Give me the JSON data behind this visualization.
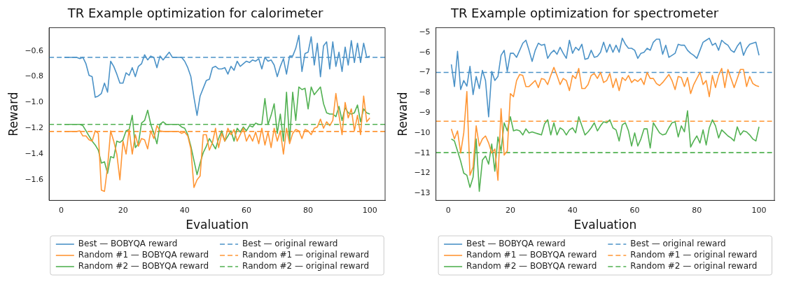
{
  "chart_data": [
    {
      "type": "line",
      "title": "TR Example optimization for calorimeter",
      "xlabel": "Evaluation",
      "ylabel": "Reward",
      "marker": "none",
      "line_style": "solid",
      "grid": false,
      "legend": "bottom",
      "x": [
        1,
        2,
        3,
        4,
        5,
        6,
        7,
        8,
        9,
        10,
        11,
        12,
        13,
        14,
        15,
        16,
        17,
        18,
        19,
        20,
        21,
        22,
        23,
        24,
        25,
        26,
        27,
        28,
        29,
        30,
        31,
        32,
        33,
        34,
        35,
        36,
        37,
        38,
        39,
        40,
        41,
        42,
        43,
        44,
        45,
        46,
        47,
        48,
        49,
        50,
        51,
        52,
        53,
        54,
        55,
        56,
        57,
        58,
        59,
        60,
        61,
        62,
        63,
        64,
        65,
        66,
        67,
        68,
        69,
        70,
        71,
        72,
        73,
        74,
        75,
        76,
        77,
        78,
        79,
        80,
        81,
        82,
        83,
        84,
        85,
        86,
        87,
        88,
        89,
        90,
        91,
        92,
        93,
        94,
        95,
        96,
        97,
        98,
        99,
        100
      ],
      "xlim": [
        -3.95,
        104.95
      ],
      "xticks": [
        0,
        20,
        40,
        60,
        80,
        100
      ],
      "ylim": [
        -1.76,
        -0.42
      ],
      "yticks": [
        {
          "value": -1.6,
          "label": "−1.6"
        },
        {
          "value": -1.4,
          "label": "−1.4"
        },
        {
          "value": -1.2,
          "label": "−1.2"
        },
        {
          "value": -1.0,
          "label": "−1.0"
        },
        {
          "value": -0.8,
          "label": "−0.8"
        },
        {
          "value": -0.6,
          "label": "−0.6"
        }
      ],
      "series": [
        {
          "name": "Best — BOBYQA reward",
          "color": "#4b92c7",
          "values": [
            -0.65,
            -0.65,
            -0.65,
            -0.65,
            -0.65,
            -0.66,
            -0.65,
            -0.7,
            -0.79,
            -0.8,
            -0.96,
            -0.95,
            -0.93,
            -0.85,
            -0.92,
            -0.68,
            -0.72,
            -0.78,
            -0.85,
            -0.85,
            -0.77,
            -0.79,
            -0.73,
            -0.8,
            -0.72,
            -0.7,
            -0.63,
            -0.67,
            -0.64,
            -0.65,
            -0.73,
            -0.64,
            -0.67,
            -0.64,
            -0.61,
            -0.65,
            -0.65,
            -0.65,
            -0.65,
            -0.68,
            -0.73,
            -0.8,
            -0.96,
            -1.1,
            -0.95,
            -0.89,
            -0.83,
            -0.82,
            -0.73,
            -0.72,
            -0.74,
            -0.74,
            -0.73,
            -0.78,
            -0.72,
            -0.75,
            -0.68,
            -0.72,
            -0.7,
            -0.68,
            -0.69,
            -0.67,
            -0.68,
            -0.66,
            -0.74,
            -0.65,
            -0.68,
            -0.67,
            -0.71,
            -0.8,
            -0.72,
            -0.66,
            -0.78,
            -0.64,
            -0.64,
            -0.58,
            -0.48,
            -0.76,
            -0.62,
            -0.61,
            -0.49,
            -0.71,
            -0.54,
            -0.8,
            -0.56,
            -0.53,
            -0.74,
            -0.53,
            -0.72,
            -0.61,
            -0.76,
            -0.57,
            -0.71,
            -0.52,
            -0.69,
            -0.54,
            -0.69,
            -0.54,
            -0.65,
            -0.64
          ]
        },
        {
          "name": "Random #1 — BOBYQA reward",
          "color": "#ff9635",
          "values": [
            -1.225,
            -1.225,
            -1.225,
            -1.225,
            -1.225,
            -1.22,
            -1.26,
            -1.26,
            -1.29,
            -1.3,
            -1.22,
            -1.24,
            -1.68,
            -1.69,
            -1.5,
            -1.22,
            -1.3,
            -1.4,
            -1.6,
            -1.3,
            -1.4,
            -1.21,
            -1.4,
            -1.25,
            -1.34,
            -1.28,
            -1.29,
            -1.36,
            -1.22,
            -1.28,
            -1.18,
            -1.22,
            -1.225,
            -1.225,
            -1.225,
            -1.225,
            -1.225,
            -1.225,
            -1.24,
            -1.23,
            -1.26,
            -1.36,
            -1.66,
            -1.6,
            -1.57,
            -1.25,
            -1.25,
            -1.37,
            -1.31,
            -1.2,
            -1.35,
            -1.24,
            -1.3,
            -1.2,
            -1.25,
            -1.21,
            -1.3,
            -1.25,
            -1.2,
            -1.3,
            -1.25,
            -1.3,
            -1.23,
            -1.32,
            -1.2,
            -1.33,
            -1.23,
            -1.35,
            -1.2,
            -1.3,
            -1.22,
            -1.4,
            -1.2,
            -1.32,
            -1.24,
            -1.21,
            -1.22,
            -1.28,
            -1.21,
            -1.22,
            -1.25,
            -1.2,
            -1.19,
            -1.13,
            -1.2,
            -1.15,
            -1.18,
            -1.14,
            -0.93,
            -1.1,
            -1.25,
            -1.0,
            -1.12,
            -1.05,
            -1.22,
            -1.1,
            -1.25,
            -0.95,
            -1.15,
            -1.12
          ]
        },
        {
          "name": "Random #2 — BOBYQA reward",
          "color": "#52b152",
          "values": [
            -1.17,
            -1.17,
            -1.17,
            -1.17,
            -1.17,
            -1.17,
            -1.18,
            -1.22,
            -1.26,
            -1.3,
            -1.33,
            -1.37,
            -1.47,
            -1.46,
            -1.55,
            -1.42,
            -1.43,
            -1.3,
            -1.31,
            -1.29,
            -1.22,
            -1.21,
            -1.1,
            -1.35,
            -1.32,
            -1.16,
            -1.14,
            -1.06,
            -1.17,
            -1.24,
            -1.32,
            -1.17,
            -1.15,
            -1.17,
            -1.17,
            -1.17,
            -1.17,
            -1.17,
            -1.19,
            -1.2,
            -1.25,
            -1.34,
            -1.45,
            -1.56,
            -1.47,
            -1.39,
            -1.34,
            -1.28,
            -1.32,
            -1.36,
            -1.28,
            -1.22,
            -1.3,
            -1.26,
            -1.22,
            -1.3,
            -1.2,
            -1.23,
            -1.19,
            -1.22,
            -1.18,
            -1.19,
            -1.16,
            -1.17,
            -1.17,
            -0.97,
            -1.17,
            -1.1,
            -1.01,
            -1.24,
            -1.09,
            -1.3,
            -0.92,
            -1.3,
            -0.92,
            -1.14,
            -0.88,
            -0.9,
            -0.89,
            -1.05,
            -0.88,
            -0.94,
            -0.91,
            -0.88,
            -1.01,
            -1.08,
            -1.09,
            -1.09,
            -1.11,
            -1.03,
            -1.14,
            -1.04,
            -1.08,
            -1.09,
            -1.08,
            -1.02,
            -1.15,
            -1.05,
            -1.08,
            -1.09
          ]
        }
      ],
      "ref_lines": [
        {
          "axis": "y",
          "value": -0.65,
          "label": "Best — original reward",
          "color": "#4b92c7",
          "line_style": "dashed"
        },
        {
          "axis": "y",
          "value": -1.225,
          "label": "Random #1 — original reward",
          "color": "#ff9635",
          "line_style": "dashed"
        },
        {
          "axis": "y",
          "value": -1.17,
          "label": "Random #2 — original reward",
          "color": "#52b152",
          "line_style": "dashed"
        }
      ]
    },
    {
      "type": "line",
      "title": "TR Example optimization for spectrometer",
      "xlabel": "Evaluation",
      "ylabel": "Reward",
      "marker": "none",
      "line_style": "solid",
      "grid": false,
      "legend": "bottom",
      "x": [
        1,
        2,
        3,
        4,
        5,
        6,
        7,
        8,
        9,
        10,
        11,
        12,
        13,
        14,
        15,
        16,
        17,
        18,
        19,
        20,
        21,
        22,
        23,
        24,
        25,
        26,
        27,
        28,
        29,
        30,
        31,
        32,
        33,
        34,
        35,
        36,
        37,
        38,
        39,
        40,
        41,
        42,
        43,
        44,
        45,
        46,
        47,
        48,
        49,
        50,
        51,
        52,
        53,
        54,
        55,
        56,
        57,
        58,
        59,
        60,
        61,
        62,
        63,
        64,
        65,
        66,
        67,
        68,
        69,
        70,
        71,
        72,
        73,
        74,
        75,
        76,
        77,
        78,
        79,
        80,
        81,
        82,
        83,
        84,
        85,
        86,
        87,
        88,
        89,
        90,
        91,
        92,
        93,
        94,
        95,
        96,
        97,
        98,
        99,
        100
      ],
      "xlim": [
        -3.95,
        104.95
      ],
      "xticks": [
        0,
        20,
        40,
        60,
        80,
        100
      ],
      "ylim": [
        -13.35,
        -4.78
      ],
      "yticks": [
        {
          "value": -13,
          "label": "−13"
        },
        {
          "value": -12,
          "label": "−12"
        },
        {
          "value": -11,
          "label": "−11"
        },
        {
          "value": -10,
          "label": "−10"
        },
        {
          "value": -9,
          "label": "−9"
        },
        {
          "value": -8,
          "label": "−8"
        },
        {
          "value": -7,
          "label": "−7"
        },
        {
          "value": -6,
          "label": "−6"
        },
        {
          "value": -5,
          "label": "−5"
        }
      ],
      "series": [
        {
          "name": "Best — BOBYQA reward",
          "color": "#4b92c7",
          "values": [
            -6.6,
            -7.7,
            -5.95,
            -7.85,
            -7.4,
            -7.68,
            -6.7,
            -8.1,
            -7.2,
            -7.8,
            -6.9,
            -7.4,
            -9.2,
            -6.95,
            -7.4,
            -7.2,
            -6.15,
            -5.9,
            -6.95,
            -6.05,
            -6.05,
            -6.25,
            -5.9,
            -5.55,
            -5.4,
            -5.9,
            -6.45,
            -5.9,
            -5.55,
            -5.65,
            -5.6,
            -6.3,
            -6.05,
            -5.9,
            -6.1,
            -5.75,
            -6.05,
            -6.3,
            -5.4,
            -6.05,
            -5.75,
            -5.9,
            -5.6,
            -6.35,
            -6.3,
            -5.9,
            -6.25,
            -6.2,
            -6.0,
            -5.5,
            -6.0,
            -5.6,
            -6.0,
            -5.65,
            -6.0,
            -5.3,
            -5.6,
            -5.8,
            -5.8,
            -5.9,
            -6.3,
            -6.05,
            -6.0,
            -5.8,
            -5.9,
            -5.5,
            -5.35,
            -5.35,
            -6.1,
            -5.65,
            -6.25,
            -6.15,
            -6.05,
            -5.6,
            -5.65,
            -5.65,
            -5.9,
            -6.05,
            -6.15,
            -6.3,
            -5.9,
            -5.5,
            -5.4,
            -5.3,
            -5.65,
            -5.55,
            -5.9,
            -5.4,
            -5.55,
            -5.65,
            -5.9,
            -6.0,
            -5.7,
            -5.5,
            -6.15,
            -5.8,
            -5.6,
            -5.55,
            -5.5,
            -6.15
          ]
        },
        {
          "name": "Random #1 — BOBYQA reward",
          "color": "#ff9635",
          "values": [
            -9.8,
            -10.3,
            -9.9,
            -11.0,
            -10.0,
            -7.95,
            -12.1,
            -11.7,
            -9.65,
            -10.65,
            -10.3,
            -10.15,
            -10.5,
            -11.0,
            -10.8,
            -12.35,
            -8.8,
            -11.1,
            -10.9,
            -8.05,
            -8.2,
            -7.4,
            -7.1,
            -7.15,
            -7.7,
            -7.7,
            -7.55,
            -7.4,
            -7.75,
            -7.3,
            -7.35,
            -7.6,
            -7.15,
            -6.75,
            -7.15,
            -7.6,
            -7.3,
            -7.4,
            -7.9,
            -7.15,
            -7.3,
            -6.8,
            -7.8,
            -7.8,
            -7.6,
            -7.15,
            -7.05,
            -7.3,
            -7.0,
            -7.5,
            -7.4,
            -7.05,
            -7.75,
            -7.3,
            -7.9,
            -7.25,
            -7.4,
            -7.15,
            -7.5,
            -7.35,
            -7.45,
            -7.3,
            -7.6,
            -7.0,
            -7.3,
            -7.3,
            -7.55,
            -7.65,
            -7.5,
            -7.3,
            -7.1,
            -7.4,
            -7.85,
            -7.2,
            -7.25,
            -7.7,
            -7.25,
            -8.05,
            -7.6,
            -7.3,
            -7.0,
            -7.6,
            -7.4,
            -8.2,
            -7.15,
            -7.75,
            -7.15,
            -6.8,
            -7.75,
            -6.85,
            -7.3,
            -7.75,
            -7.3,
            -6.85,
            -6.85,
            -7.7,
            -7.2,
            -7.55,
            -7.65,
            -7.7
          ]
        },
        {
          "name": "Random #2 — BOBYQA reward",
          "color": "#52b152",
          "values": [
            -10.3,
            -10.4,
            -10.9,
            -11.4,
            -12.0,
            -12.1,
            -12.7,
            -12.2,
            -10.3,
            -12.9,
            -11.35,
            -11.15,
            -11.55,
            -10.55,
            -11.9,
            -10.2,
            -10.9,
            -9.5,
            -9.9,
            -9.2,
            -9.9,
            -9.85,
            -9.9,
            -10.1,
            -9.8,
            -10.0,
            -9.95,
            -10.0,
            -10.05,
            -10.1,
            -9.55,
            -9.35,
            -10.1,
            -9.5,
            -10.1,
            -9.75,
            -9.85,
            -10.1,
            -9.85,
            -9.75,
            -10.0,
            -9.2,
            -9.65,
            -10.1,
            -9.95,
            -9.75,
            -9.5,
            -9.9,
            -9.65,
            -9.45,
            -9.5,
            -9.35,
            -9.75,
            -9.85,
            -10.4,
            -9.6,
            -9.5,
            -9.9,
            -10.65,
            -10.0,
            -10.65,
            -10.3,
            -9.8,
            -9.8,
            -10.75,
            -9.5,
            -9.75,
            -10.0,
            -10.1,
            -10.05,
            -9.75,
            -9.5,
            -9.45,
            -10.2,
            -9.65,
            -9.95,
            -8.9,
            -10.7,
            -10.4,
            -10.15,
            -10.5,
            -9.85,
            -10.6,
            -9.75,
            -9.35,
            -9.65,
            -10.25,
            -9.85,
            -10.0,
            -10.15,
            -10.25,
            -10.4,
            -9.7,
            -10.1,
            -9.9,
            -9.95,
            -10.1,
            -10.3,
            -10.4,
            -9.7
          ]
        }
      ],
      "ref_lines": [
        {
          "axis": "y",
          "value": -7.0,
          "label": "Best — original reward",
          "color": "#4b92c7",
          "line_style": "dashed"
        },
        {
          "axis": "y",
          "value": -9.42,
          "label": "Random #1 — original reward",
          "color": "#ff9635",
          "line_style": "dashed"
        },
        {
          "axis": "y",
          "value": -10.98,
          "label": "Random #2 — original reward",
          "color": "#52b152",
          "line_style": "dashed"
        }
      ]
    }
  ]
}
